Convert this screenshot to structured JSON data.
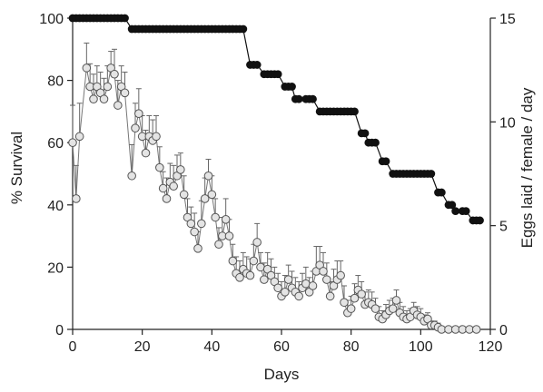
{
  "chart_data": {
    "type": "line",
    "xlabel": "Days",
    "ylabel_left": "% Survival",
    "ylabel_right": "Eggs laid / female / day",
    "xlim": [
      0,
      120
    ],
    "ylim_left": [
      0,
      100
    ],
    "ylim_right": [
      0,
      15
    ],
    "xticks": [
      0,
      20,
      40,
      60,
      80,
      100,
      120
    ],
    "yticks_left": [
      0,
      20,
      40,
      60,
      80,
      100
    ],
    "yticks_right": [
      0,
      5,
      10,
      15
    ],
    "grid": false,
    "colors": {
      "survival": "#111111",
      "eggs_marker": "#b8b8b8",
      "eggs_line": "#777777"
    },
    "series": [
      {
        "axis": "left",
        "marker": "filled-circle",
        "x": [
          0,
          1,
          2,
          3,
          4,
          5,
          6,
          7,
          8,
          9,
          10,
          11,
          12,
          13,
          14,
          15,
          17,
          18,
          19,
          20,
          21,
          22,
          23,
          24,
          25,
          26,
          27,
          28,
          29,
          30,
          31,
          32,
          33,
          34,
          35,
          36,
          37,
          38,
          39,
          40,
          41,
          42,
          43,
          44,
          45,
          46,
          47,
          48,
          49,
          51,
          52,
          53,
          55,
          56,
          57,
          58,
          59,
          61,
          62,
          63,
          64,
          65,
          67,
          68,
          69,
          71,
          72,
          73,
          74,
          75,
          76,
          77,
          78,
          79,
          80,
          81,
          83,
          84,
          85,
          86,
          87,
          89,
          90,
          92,
          93,
          94,
          95,
          96,
          97,
          98,
          99,
          100,
          101,
          102,
          103,
          105,
          106,
          108,
          109,
          110,
          112,
          113,
          115,
          116,
          117
        ],
        "y": [
          100,
          100,
          100,
          100,
          100,
          100,
          100,
          100,
          100,
          100,
          100,
          100,
          100,
          100,
          100,
          100,
          96.5,
          96.5,
          96.5,
          96.5,
          96.5,
          96.5,
          96.5,
          96.5,
          96.5,
          96.5,
          96.5,
          96.5,
          96.5,
          96.5,
          96.5,
          96.5,
          96.5,
          96.5,
          96.5,
          96.5,
          96.5,
          96.5,
          96.5,
          96.5,
          96.5,
          96.5,
          96.5,
          96.5,
          96.5,
          96.5,
          96.5,
          96.5,
          96.5,
          85,
          85,
          85,
          82,
          82,
          82,
          82,
          82,
          78,
          78,
          78,
          74,
          74,
          74,
          74,
          74,
          70,
          70,
          70,
          70,
          70,
          70,
          70,
          70,
          70,
          70,
          70,
          63,
          63,
          60,
          60,
          60,
          54,
          54,
          50,
          50,
          50,
          50,
          50,
          50,
          50,
          50,
          50,
          50,
          50,
          50,
          44,
          44,
          40,
          40,
          38,
          38,
          38,
          35,
          35,
          35
        ]
      },
      {
        "axis": "right",
        "marker": "open-circle",
        "x": [
          0,
          1,
          2,
          4,
          5,
          6,
          7,
          8,
          9,
          10,
          11,
          12,
          13,
          14,
          15,
          17,
          18,
          19,
          20,
          21,
          22,
          23,
          24,
          25,
          26,
          27,
          28,
          29,
          30,
          31,
          32,
          33,
          34,
          35,
          36,
          37,
          38,
          39,
          40,
          41,
          42,
          43,
          44,
          45,
          46,
          47,
          48,
          49,
          50,
          51,
          52,
          53,
          54,
          55,
          56,
          57,
          58,
          59,
          60,
          61,
          62,
          63,
          64,
          65,
          66,
          67,
          68,
          69,
          70,
          71,
          72,
          73,
          74,
          75,
          76,
          77,
          78,
          79,
          80,
          81,
          82,
          83,
          84,
          85,
          86,
          87,
          88,
          89,
          90,
          91,
          92,
          93,
          94,
          95,
          96,
          97,
          98,
          99,
          100,
          101,
          102,
          103,
          104,
          105,
          106,
          108,
          110,
          112,
          114,
          116
        ],
        "y": [
          9,
          6.3,
          9.3,
          12.6,
          11.7,
          11.1,
          11.7,
          11.4,
          11.1,
          11.7,
          12.6,
          12.3,
          10.8,
          11.7,
          11.4,
          7.4,
          9.7,
          10.4,
          9.3,
          8.5,
          9.3,
          9.1,
          9.3,
          7.8,
          6.8,
          6.3,
          7.1,
          6.9,
          7.4,
          7.7,
          6.5,
          5.4,
          5.1,
          4.7,
          3.9,
          5.1,
          6.3,
          7.4,
          6.5,
          5.4,
          4.1,
          4.5,
          5.3,
          4.5,
          3.3,
          2.7,
          2.5,
          2.9,
          2.7,
          2.6,
          3.3,
          4.2,
          3.0,
          2.4,
          2.9,
          2.6,
          2.3,
          2.0,
          1.6,
          1.8,
          2.4,
          2.0,
          1.8,
          1.6,
          2.0,
          2.2,
          1.8,
          2.1,
          2.8,
          3.1,
          2.8,
          2.4,
          1.6,
          2.1,
          2.4,
          2.6,
          1.3,
          0.8,
          1.0,
          1.5,
          1.9,
          1.7,
          1.2,
          1.3,
          1.2,
          1.0,
          0.6,
          0.5,
          0.7,
          0.9,
          1.0,
          1.4,
          0.8,
          0.6,
          0.5,
          0.6,
          0.9,
          0.7,
          0.6,
          0.4,
          0.5,
          0.2,
          0.2,
          0.1,
          0,
          0,
          0,
          0,
          0,
          0
        ],
        "err": [
          1.8,
          1.6,
          1.6,
          1.2,
          1.1,
          1.2,
          1.0,
          1.0,
          1.0,
          1.0,
          0.8,
          1.2,
          1.2,
          1.0,
          1.0,
          1.5,
          1.2,
          1.2,
          1.0,
          1.1,
          1.0,
          1.0,
          1.0,
          1.0,
          0.8,
          1.0,
          0.9,
          1.0,
          1.0,
          0.8,
          0.9,
          0.9,
          0.8,
          0.9,
          0.8,
          1.1,
          1.0,
          0.8,
          0.9,
          0.9,
          0.8,
          0.9,
          1.0,
          0.8,
          0.8,
          0.8,
          0.8,
          0.8,
          0.8,
          0.8,
          0.8,
          0.9,
          0.7,
          0.8,
          0.8,
          0.8,
          0.7,
          0.7,
          0.7,
          0.8,
          0.7,
          0.8,
          0.7,
          0.7,
          0.7,
          0.8,
          0.7,
          0.7,
          1.2,
          0.9,
          0.9,
          0.8,
          0.7,
          0.8,
          0.9,
          0.7,
          0.8,
          0.6,
          0.6,
          0.7,
          0.7,
          0.6,
          0.6,
          0.6,
          0.6,
          0.5,
          0.5,
          0.4,
          0.5,
          0.5,
          0.5,
          0.5,
          0.5,
          0.5,
          0.4,
          0.4,
          0.4,
          0.4,
          0.4,
          0.3,
          0.3,
          0.2,
          0.2,
          0.2,
          0,
          0,
          0,
          0,
          0,
          0
        ]
      }
    ]
  }
}
